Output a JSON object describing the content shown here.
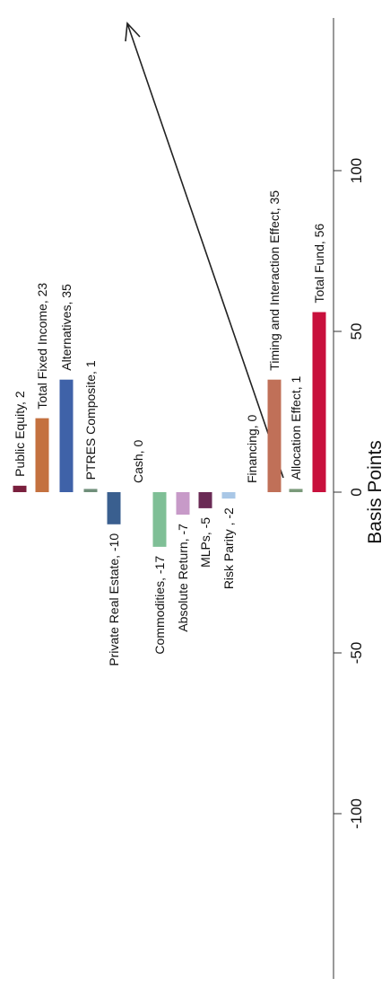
{
  "chart_data": {
    "type": "bar",
    "orientation": "rotated-90-ccw",
    "xlabel": "Basis Points",
    "xlim": [
      -100,
      100
    ],
    "ticks": [
      "-100",
      "-50",
      "0",
      "50",
      "100"
    ],
    "categories": [
      "Public Equity, 2",
      "Total Fixed Income, 23",
      "Alternatives, 35",
      "PTRES Composite, 1",
      "Private Real Estate, -10",
      "Cash, 0",
      "Commodities, -17",
      "Absolute Return, -7",
      "MLPs, -5",
      "Risk Parity , -2",
      "Financing, 0",
      "Timing and Interaction Effect, 35",
      "Allocation Effect, 1",
      "Total Fund, 56"
    ],
    "values": [
      2,
      23,
      35,
      1,
      -10,
      0,
      -17,
      -7,
      -5,
      -2,
      0,
      35,
      1,
      56
    ],
    "colors": [
      "#7a1f3d",
      "#c4713f",
      "#3f62a8",
      "#6f8f7a",
      "#3a5f8f",
      "#ffffff",
      "#7fbf96",
      "#c79ac8",
      "#6a2a55",
      "#a9c7e6",
      "#ffffff",
      "#c07058",
      "#7a9a7a",
      "#c8103c"
    ]
  }
}
